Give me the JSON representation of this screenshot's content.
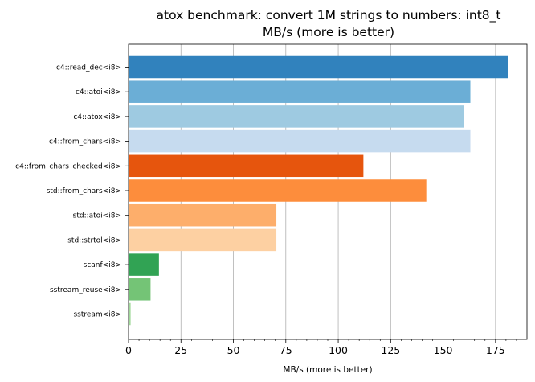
{
  "chart_data": {
    "type": "bar",
    "orientation": "horizontal",
    "title_line1": "atox benchmark: convert 1M strings to numbers: int8_t",
    "title_line2": "MB/s (more is better)",
    "xlabel": "MB/s (more is better)",
    "ylabel": "",
    "xlim": [
      0,
      190
    ],
    "xticks": [
      0,
      25,
      50,
      75,
      100,
      125,
      150,
      175
    ],
    "x_grid": true,
    "categories": [
      "c4::read_dec<i8>",
      "c4::atoi<i8>",
      "c4::atox<i8>",
      "c4::from_chars<i8>",
      "c4::from_chars_checked<i8>",
      "std::from_chars<i8>",
      "std::atoi<i8>",
      "std::strtol<i8>",
      "scanf<i8>",
      "sstream_reuse<i8>",
      "sstream<i8>"
    ],
    "values": [
      181,
      163,
      160,
      163,
      112,
      142,
      70.5,
      70.5,
      14.5,
      10.5,
      1
    ],
    "colors": [
      "#3182bd",
      "#6baed6",
      "#9ecae1",
      "#c6dbef",
      "#e6550d",
      "#fd8d3c",
      "#fdae6b",
      "#fdd0a2",
      "#31a354",
      "#74c476",
      "#a1d99b"
    ]
  }
}
